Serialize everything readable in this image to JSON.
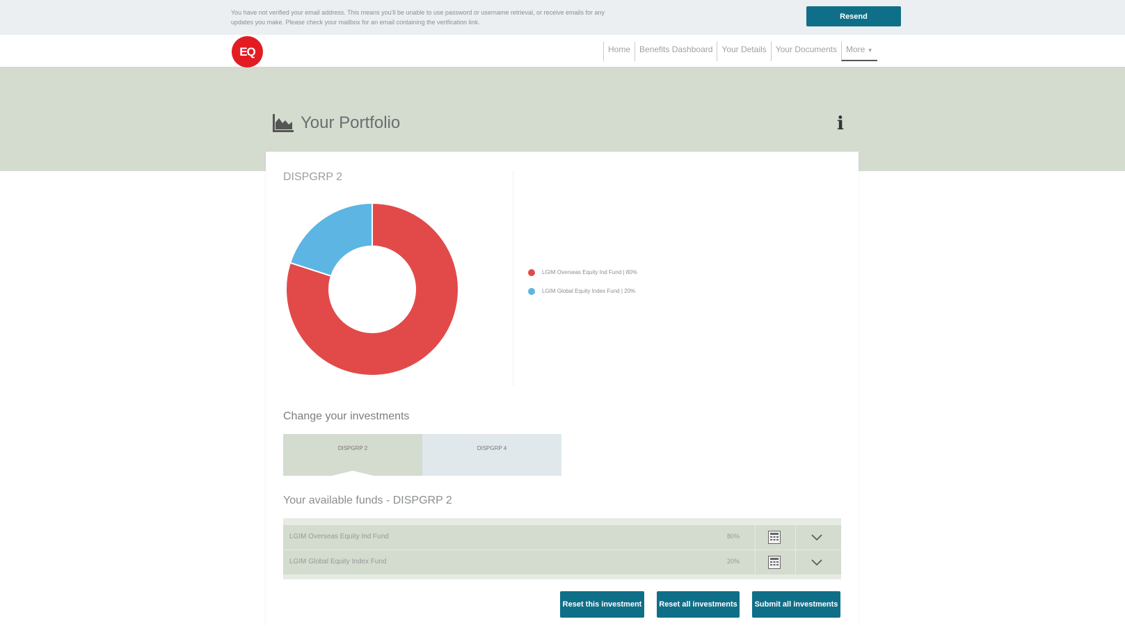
{
  "banner": {
    "message": "You have not verified your email address. This means you'll be unable to use password or username retrieval, or receive emails for any updates you make. Please check your mailbox for an email containing the verification link.",
    "resend_label": "Resend"
  },
  "header": {
    "logo_text": "EQ",
    "nav": [
      {
        "label": "Home"
      },
      {
        "label": "Benefits Dashboard"
      },
      {
        "label": "Your Details"
      },
      {
        "label": "Your Documents"
      },
      {
        "label": "More"
      }
    ]
  },
  "page": {
    "title": "Your Portfolio"
  },
  "portfolio": {
    "group_title": "DISPGRP 2",
    "chart_data": {
      "type": "pie",
      "variant": "donut",
      "categories": [
        "LGIM Overseas Equity Ind Fund",
        "LGIM Global Equity Index Fund"
      ],
      "values": [
        80,
        20
      ],
      "colors": [
        "#e24a4a",
        "#5cb5e3"
      ]
    },
    "legend": [
      {
        "label": "LGIM Overseas Equity Ind Fund | 80%",
        "color": "#e24a4a"
      },
      {
        "label": "LGIM Global Equity Index Fund | 20%",
        "color": "#5cb5e3"
      }
    ]
  },
  "change": {
    "title": "Change your investments",
    "tabs": [
      {
        "label": "DISPGRP 2",
        "active": true
      },
      {
        "label": "DISPGRP 4",
        "active": false
      }
    ]
  },
  "funds": {
    "title": "Your available funds - DISPGRP 2",
    "rows": [
      {
        "name": "LGIM Overseas Equity Ind Fund",
        "pct": "80%"
      },
      {
        "name": "LGIM Global Equity Index Fund",
        "pct": "20%"
      }
    ]
  },
  "actions": {
    "reset_this": "Reset this investment",
    "reset_all": "Reset all investments",
    "submit_all": "Submit all investments"
  },
  "colors": {
    "accent": "#106f88",
    "brand": "#e31c23",
    "hero_bg": "#d4dbcf"
  }
}
